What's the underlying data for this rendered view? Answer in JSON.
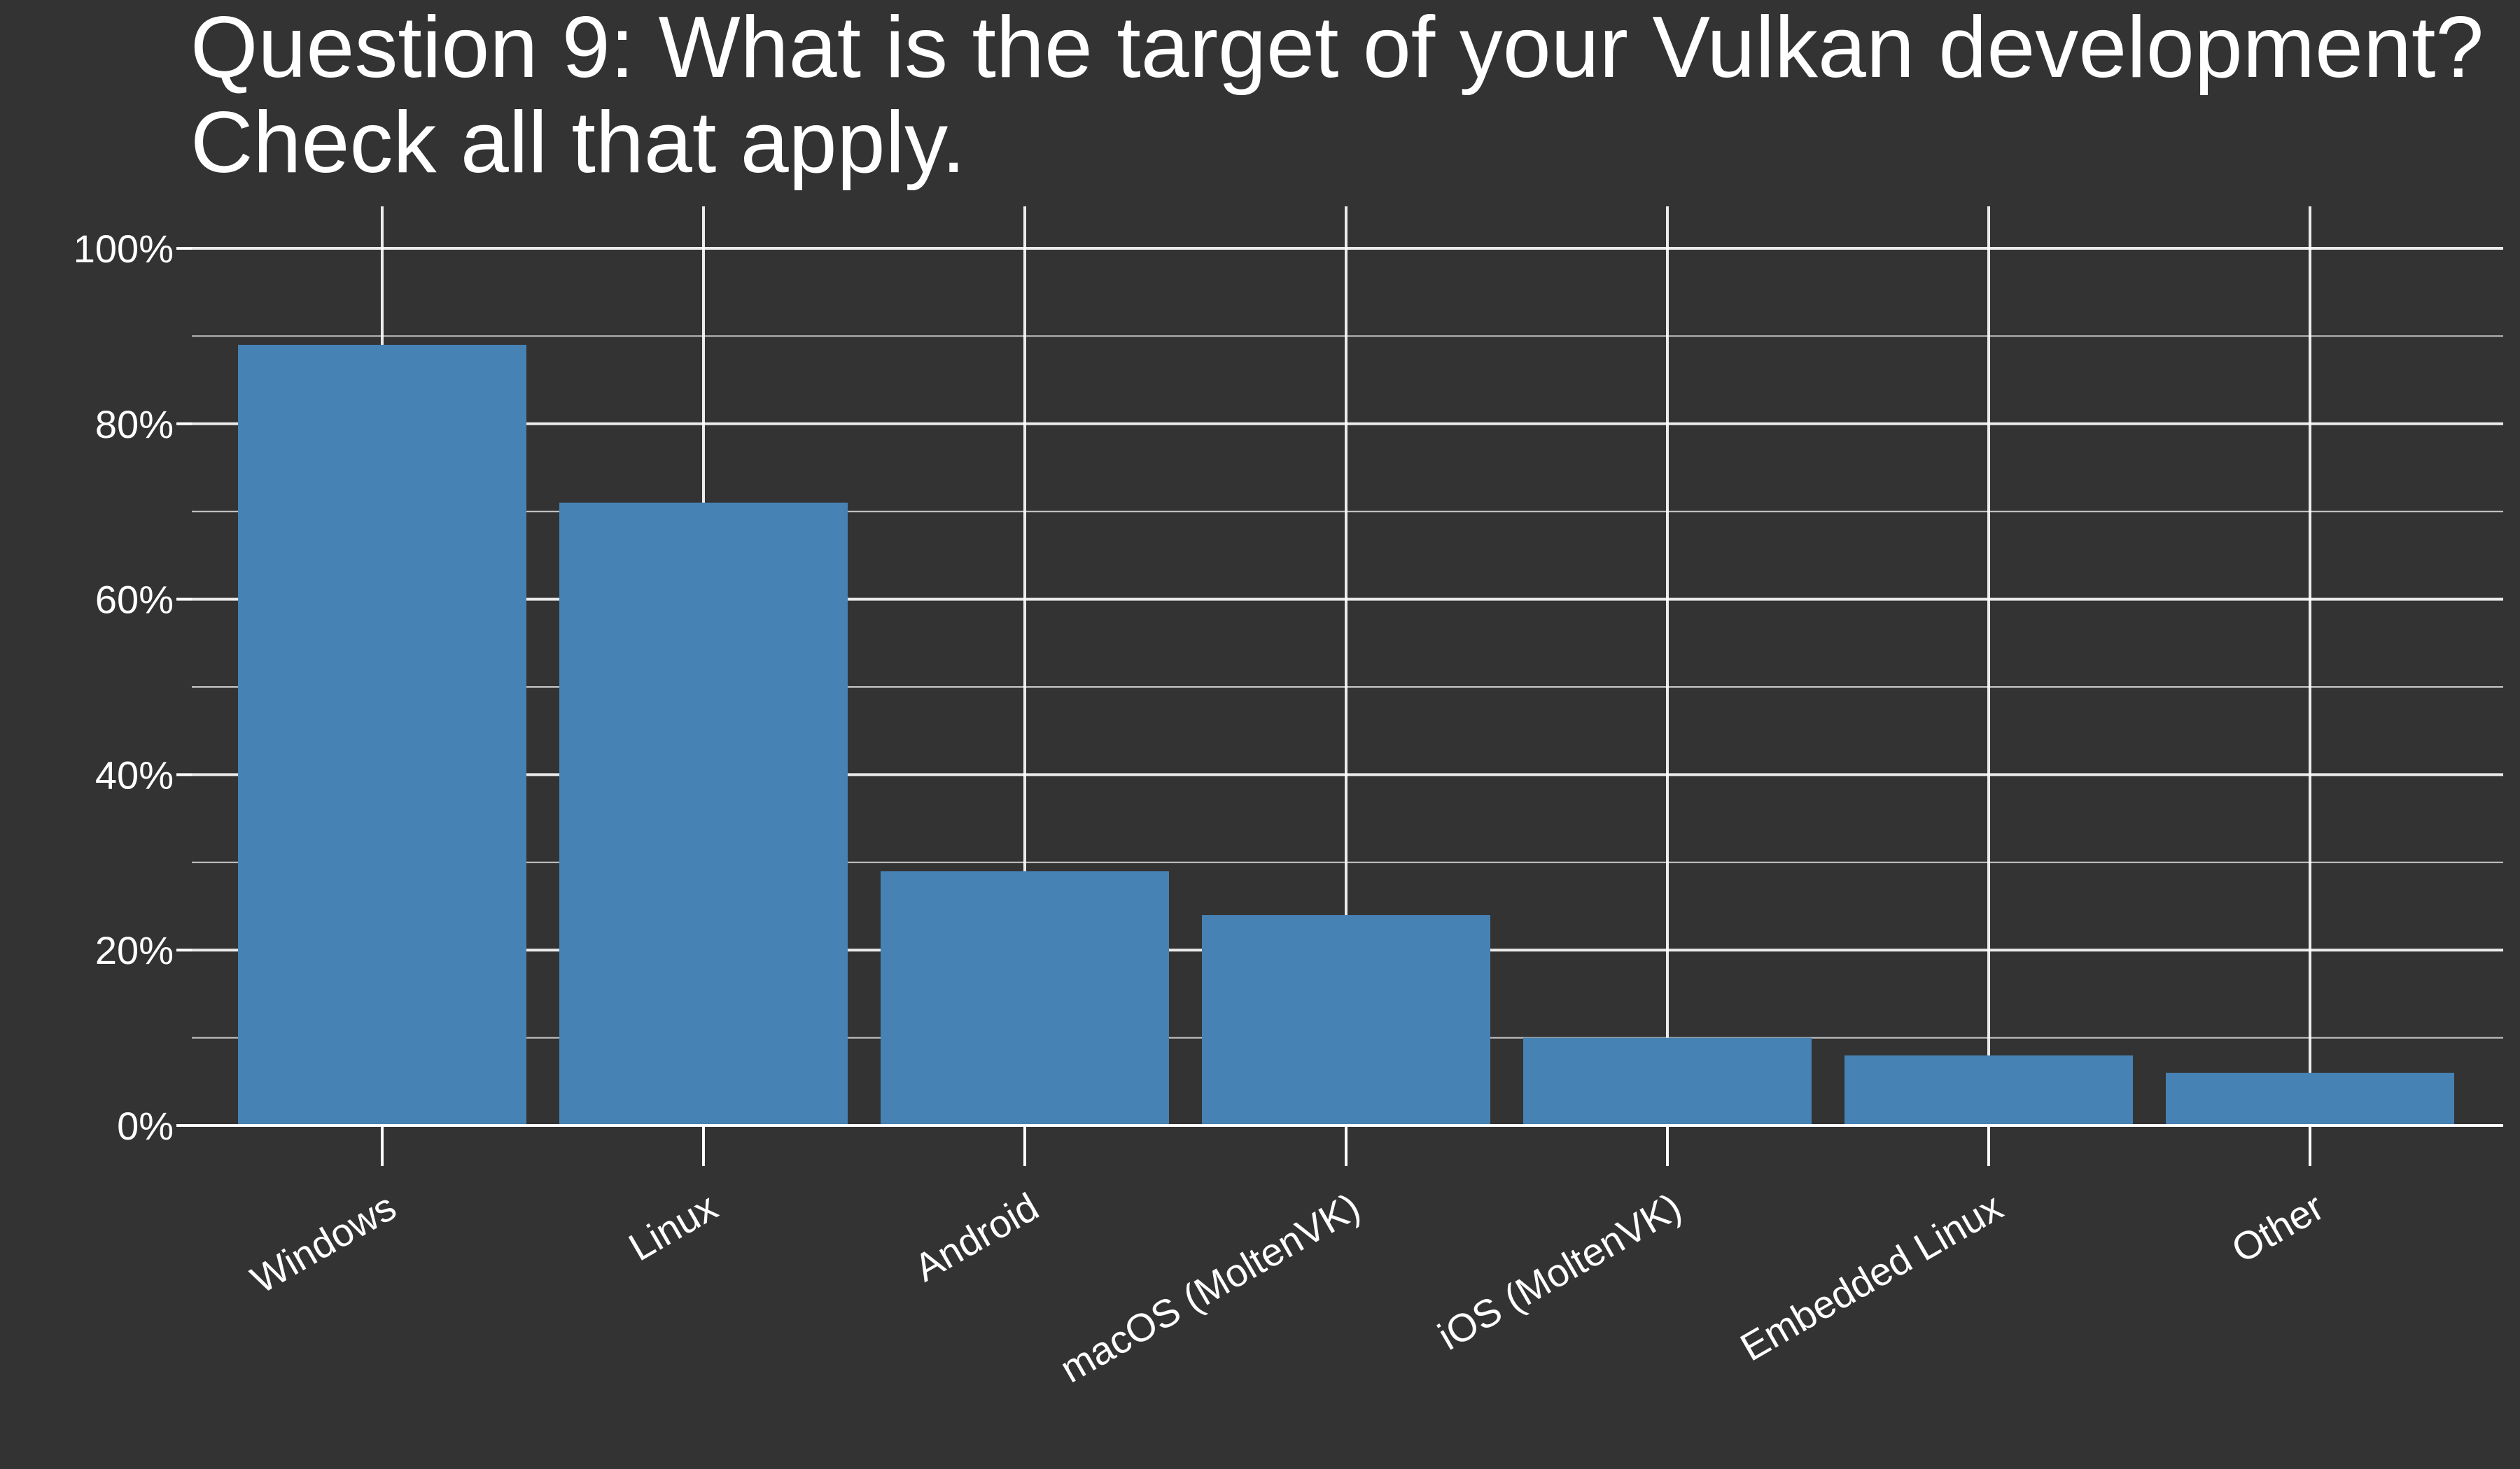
{
  "chart_data": {
    "type": "bar",
    "title": "Question 9: What is the target of your Vulkan development?",
    "subtitle": "Check all that apply.",
    "xlabel": "",
    "ylabel": "",
    "categories": [
      "Windows",
      "Linux",
      "Android",
      "macOS (MoltenVK)",
      "iOS (MoltenVK)",
      "Embedded Linux",
      "Other"
    ],
    "values": [
      89,
      71,
      29,
      24,
      10,
      8,
      6
    ],
    "ylim": [
      0,
      100
    ],
    "yticks": [
      0,
      20,
      40,
      60,
      80,
      100
    ],
    "ytick_labels": [
      "0%",
      "20%",
      "40%",
      "60%",
      "80%",
      "100%"
    ],
    "grid": true,
    "legend": "none",
    "colors": {
      "background": "#333333",
      "bar": "#4682b4",
      "grid": "#ffffff",
      "text": "#ffffff"
    }
  }
}
